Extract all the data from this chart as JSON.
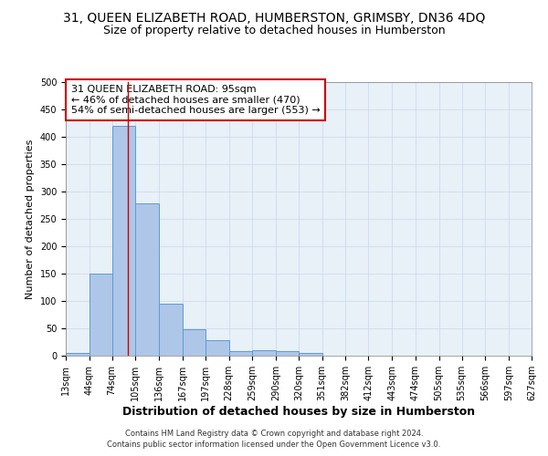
{
  "title_line1": "31, QUEEN ELIZABETH ROAD, HUMBERSTON, GRIMSBY, DN36 4DQ",
  "title_line2": "Size of property relative to detached houses in Humberston",
  "xlabel": "Distribution of detached houses by size in Humberston",
  "ylabel": "Number of detached properties",
  "footnote1": "Contains HM Land Registry data © Crown copyright and database right 2024.",
  "footnote2": "Contains public sector information licensed under the Open Government Licence v3.0.",
  "annotation_title": "31 QUEEN ELIZABETH ROAD: 95sqm",
  "annotation_line2": "← 46% of detached houses are smaller (470)",
  "annotation_line3": "54% of semi-detached houses are larger (553) →",
  "bin_edges": [
    13,
    44,
    74,
    105,
    136,
    167,
    197,
    228,
    259,
    290,
    320,
    351,
    382,
    412,
    443,
    474,
    505,
    535,
    566,
    597,
    627
  ],
  "bar_heights": [
    5,
    150,
    420,
    278,
    95,
    49,
    28,
    8,
    10,
    8,
    5,
    0,
    0,
    0,
    0,
    0,
    0,
    0,
    0,
    0
  ],
  "bar_color": "#aec6e8",
  "bar_edgecolor": "#5b9bd5",
  "vline_x": 95,
  "vline_color": "#cc0000",
  "annotation_box_color": "#cc0000",
  "ylim": [
    0,
    500
  ],
  "yticks": [
    0,
    50,
    100,
    150,
    200,
    250,
    300,
    350,
    400,
    450,
    500
  ],
  "grid_color": "#c8d8e8",
  "axes_bg_color": "#e8f0f8",
  "title1_fontsize": 10,
  "title2_fontsize": 9,
  "xlabel_fontsize": 9,
  "ylabel_fontsize": 8,
  "tick_fontsize": 7,
  "annot_fontsize": 8
}
